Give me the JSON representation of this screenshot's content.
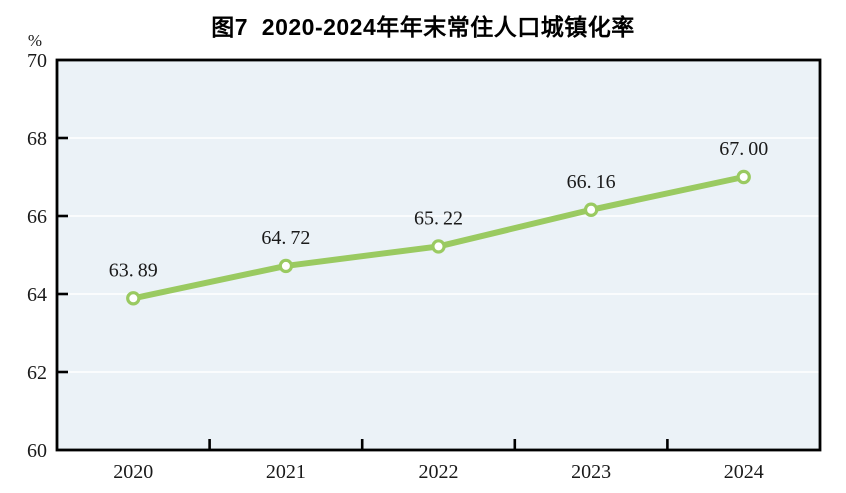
{
  "chart_data": {
    "type": "line",
    "title": "图7  2020-2024年年末常住人口城镇化率",
    "unit_label": "%",
    "categories": [
      "2020",
      "2021",
      "2022",
      "2023",
      "2024"
    ],
    "values": [
      63.89,
      64.72,
      65.22,
      66.16,
      67.0
    ],
    "data_labels": [
      "63.89",
      "64.72",
      "65.22",
      "66.16",
      "67.00"
    ],
    "xlabel": "",
    "ylabel": "%",
    "ylim": [
      60,
      70
    ],
    "yticks": [
      60,
      62,
      64,
      66,
      68,
      70
    ],
    "grid": true,
    "legend_position": "none",
    "colors": {
      "line": "#9aca61",
      "marker_fill": "#ffffff",
      "marker_stroke": "#9aca61",
      "plot_background": "#ebf2f7",
      "axis": "#000000",
      "gridline": "#ffffff",
      "text": "#1a1a1a",
      "title_text": "#000000"
    }
  }
}
